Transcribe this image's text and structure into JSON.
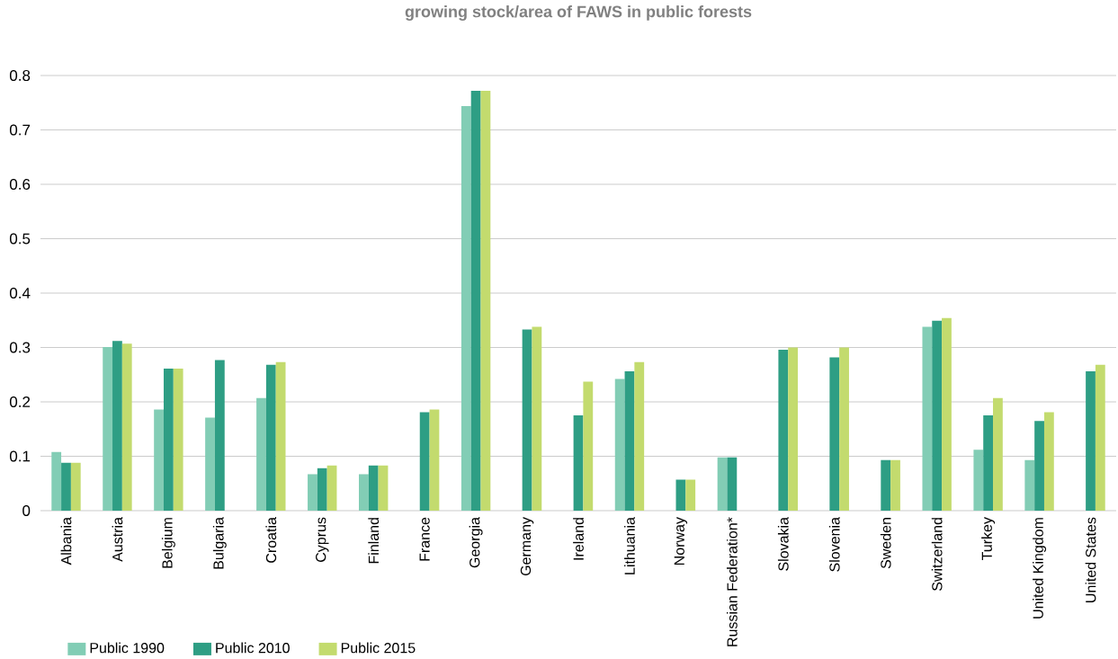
{
  "chart_data": {
    "type": "bar",
    "title": "growing stock/area of FAWS in public forests",
    "categories": [
      "Albania",
      "Austria",
      "Belgium",
      "Bulgaria",
      "Croatia",
      "Cyprus",
      "Finland",
      "France",
      "Georgia",
      "Germany",
      "Ireland",
      "Lithuania",
      "Norway",
      "Russian Federation*",
      "Slovakia",
      "Slovenia",
      "Sweden",
      "Switzerland",
      "Turkey",
      "United Kingdom",
      "United States"
    ],
    "series": [
      {
        "name": "Public 1990",
        "color": "#82cdb5",
        "values": [
          0.108,
          0.301,
          0.186,
          0.171,
          0.207,
          0.067,
          0.067,
          null,
          0.744,
          null,
          null,
          0.242,
          null,
          0.098,
          null,
          null,
          null,
          0.338,
          0.112,
          0.093,
          null
        ]
      },
      {
        "name": "Public 2010",
        "color": "#2e9e84",
        "values": [
          0.088,
          0.312,
          0.261,
          0.277,
          0.268,
          0.078,
          0.083,
          0.181,
          0.772,
          0.333,
          0.175,
          0.256,
          0.057,
          0.098,
          0.296,
          0.282,
          0.093,
          0.349,
          0.175,
          0.165,
          0.256
        ]
      },
      {
        "name": "Public 2015",
        "color": "#c3db6e",
        "values": [
          0.088,
          0.307,
          0.261,
          null,
          0.273,
          0.083,
          0.083,
          0.186,
          0.772,
          0.338,
          0.237,
          0.273,
          0.057,
          null,
          0.3,
          0.3,
          0.093,
          0.354,
          0.207,
          0.181,
          0.268
        ]
      }
    ],
    "ylim": [
      0,
      0.8
    ],
    "yticks": [
      0,
      0.1,
      0.2,
      0.3,
      0.4,
      0.5,
      0.6,
      0.7,
      0.8
    ],
    "grid": "y",
    "legend": "bottom left"
  }
}
